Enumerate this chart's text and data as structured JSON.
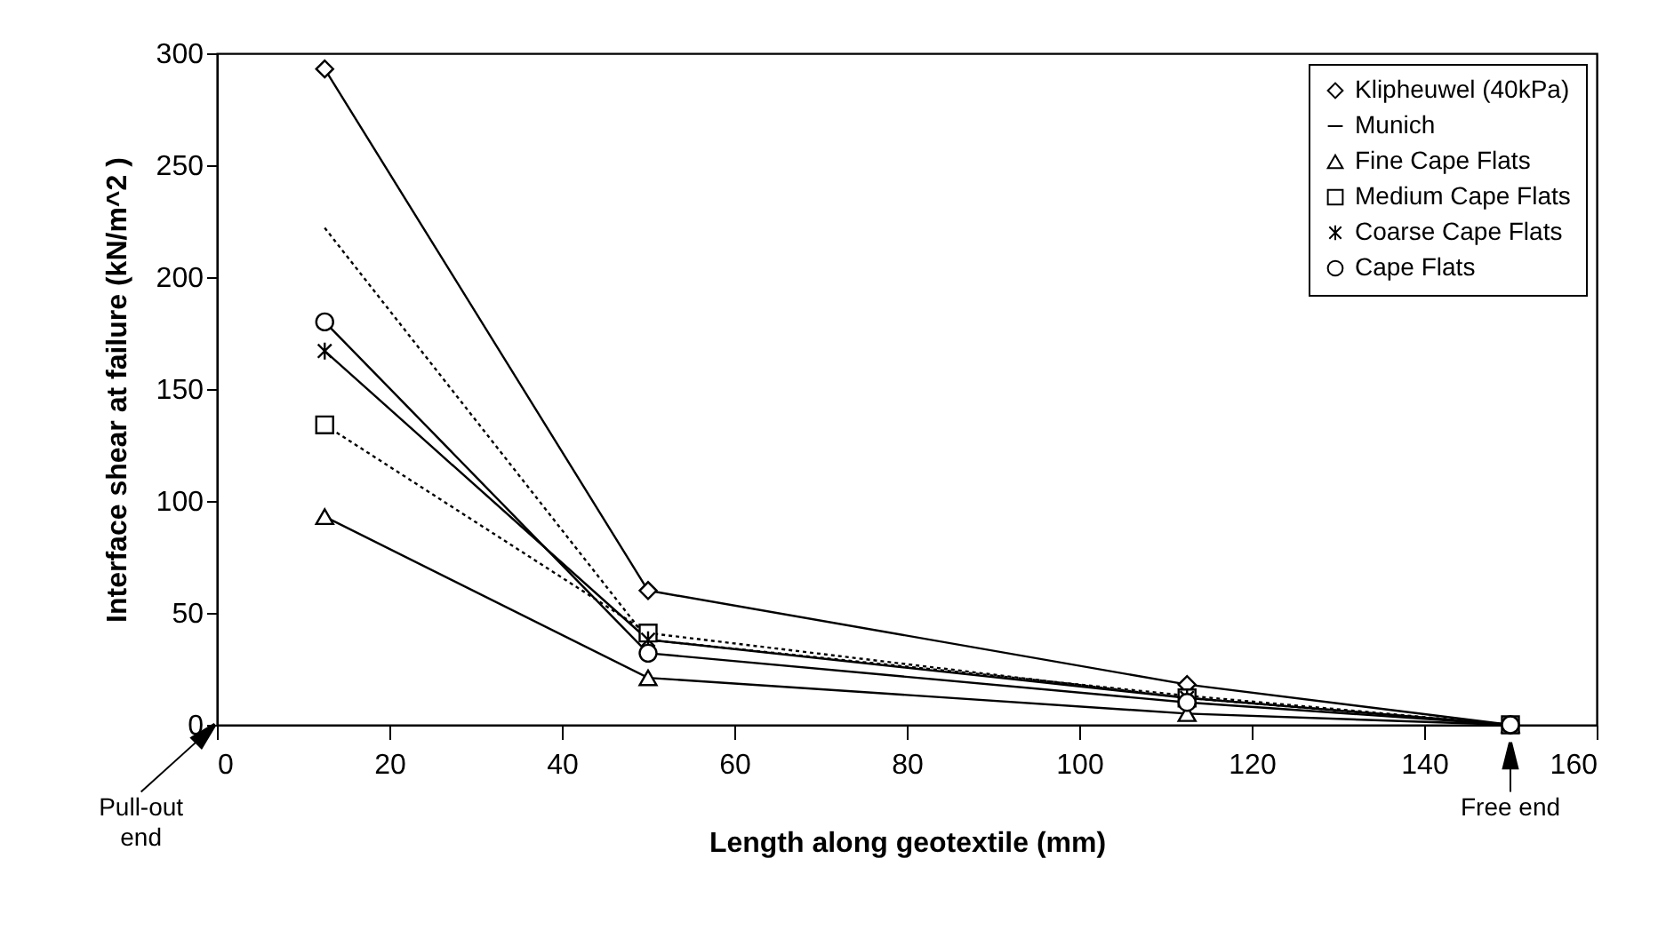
{
  "chart_data": {
    "type": "line",
    "xlabel": "Length along geotextile (mm)",
    "ylabel": "Interface shear at failure (kN/m^2 )",
    "x": [
      12.5,
      50,
      112.5,
      150
    ],
    "series": [
      {
        "name": "Klipheuwel (40kPa)",
        "color": "#000000",
        "marker": "diamond",
        "line_style": "solid",
        "values": [
          293,
          60,
          18,
          0
        ]
      },
      {
        "name": "Munich",
        "color": "#000000",
        "line_style": "dotted",
        "values": [
          222,
          38,
          13,
          0
        ]
      },
      {
        "name": "Fine Cape Flats",
        "color": "#000000",
        "marker": "triangle",
        "line_style": "solid",
        "values": [
          93,
          21,
          5,
          0
        ]
      },
      {
        "name": "Medium Cape Flats",
        "color": "#000000",
        "marker": "square",
        "line_style": "dotted",
        "values": [
          134,
          41,
          12,
          0
        ]
      },
      {
        "name": "Coarse Cape Flats",
        "color": "#000000",
        "marker": "cross",
        "line_style": "solid",
        "values": [
          167,
          38,
          12,
          0
        ]
      },
      {
        "name": "Cape Flats",
        "color": "#000000",
        "marker": "circle",
        "line_style": "solid",
        "values": [
          180,
          32,
          10,
          0
        ]
      }
    ],
    "xlim": [
      0,
      160
    ],
    "xticks": [
      0,
      20,
      40,
      60,
      80,
      100,
      120,
      140,
      160
    ],
    "ylim": [
      0,
      300
    ],
    "yticks": [
      0,
      50,
      100,
      150,
      200,
      250,
      300
    ],
    "grid": false,
    "legend": "top right",
    "annotations": [
      "Pull-out end",
      {
        "text": "Free end",
        "x": 150,
        "y": 0
      }
    ]
  }
}
